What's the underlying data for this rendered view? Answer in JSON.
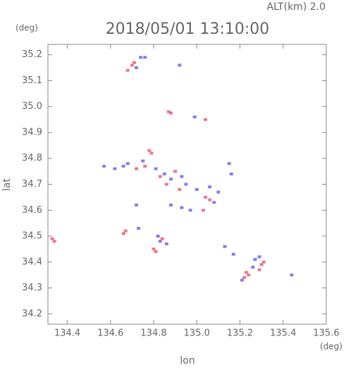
{
  "chart_data": {
    "type": "scatter",
    "title": "2018/05/01 13:10:00",
    "annotation": "ALT(km) 2.0",
    "y_unit": "(deg)",
    "x_unit": "(deg)",
    "x_label": "lon",
    "y_label": "lat",
    "xlim": [
      134.31,
      135.6
    ],
    "ylim": [
      34.16,
      35.24
    ],
    "xticks": [
      134.4,
      134.6,
      134.8,
      135.0,
      135.2,
      135.4,
      135.6
    ],
    "yticks": [
      34.2,
      34.3,
      34.4,
      34.5,
      34.6,
      34.7,
      34.8,
      34.9,
      35.0,
      35.1,
      35.2
    ],
    "series": [
      {
        "color": "#e8607a",
        "x": [
          134.33,
          134.34,
          134.7,
          134.71,
          134.68,
          134.87,
          134.88,
          135.04,
          134.78,
          134.79,
          134.72,
          134.83,
          134.86,
          134.92,
          135.04,
          135.03,
          135.06,
          134.66,
          134.67,
          134.8,
          134.81,
          134.84,
          135.23,
          135.24,
          135.3,
          135.31,
          135.29,
          135.22,
          134.76,
          134.9
        ],
        "values": [
          34.49,
          34.48,
          35.16,
          35.17,
          35.14,
          34.98,
          34.975,
          34.95,
          34.83,
          34.82,
          34.76,
          34.73,
          34.7,
          34.68,
          34.65,
          34.6,
          34.64,
          34.51,
          34.52,
          34.45,
          34.44,
          34.49,
          34.36,
          34.35,
          34.39,
          34.4,
          34.37,
          34.34,
          34.77,
          34.75
        ]
      },
      {
        "color": "#6a6ae8",
        "x": [
          134.74,
          134.76,
          134.72,
          134.92,
          134.99,
          134.57,
          134.62,
          134.66,
          134.68,
          134.75,
          134.81,
          134.85,
          134.88,
          134.93,
          134.95,
          135.0,
          135.06,
          135.08,
          135.1,
          134.88,
          134.93,
          134.97,
          134.73,
          134.82,
          134.86,
          134.83,
          135.15,
          135.13,
          135.17,
          135.29,
          135.27,
          135.21,
          135.26,
          135.44,
          135.16,
          134.72
        ],
        "values": [
          35.19,
          35.19,
          35.15,
          35.16,
          34.96,
          34.77,
          34.76,
          34.77,
          34.78,
          34.79,
          34.76,
          34.74,
          34.72,
          34.73,
          34.7,
          34.68,
          34.69,
          34.63,
          34.67,
          34.62,
          34.61,
          34.6,
          34.53,
          34.5,
          34.47,
          34.48,
          34.78,
          34.46,
          34.43,
          34.42,
          34.41,
          34.33,
          34.38,
          34.35,
          34.74,
          34.62
        ]
      }
    ]
  }
}
